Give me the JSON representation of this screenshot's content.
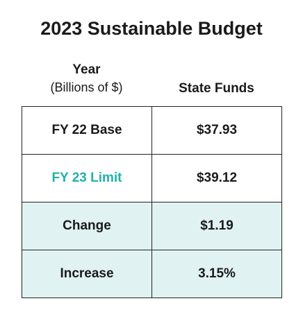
{
  "title": "2023 Sustainable Budget",
  "table": {
    "columns": [
      {
        "label": "Year",
        "note": "(Billions of $)"
      },
      {
        "label": "State Funds"
      }
    ],
    "rows": [
      [
        "FY 22 Base",
        "$37.93"
      ],
      [
        "FY 23 Limit",
        "$39.12"
      ],
      [
        "Change",
        "$1.19"
      ],
      [
        "Increase",
        "3.15%"
      ]
    ]
  }
}
